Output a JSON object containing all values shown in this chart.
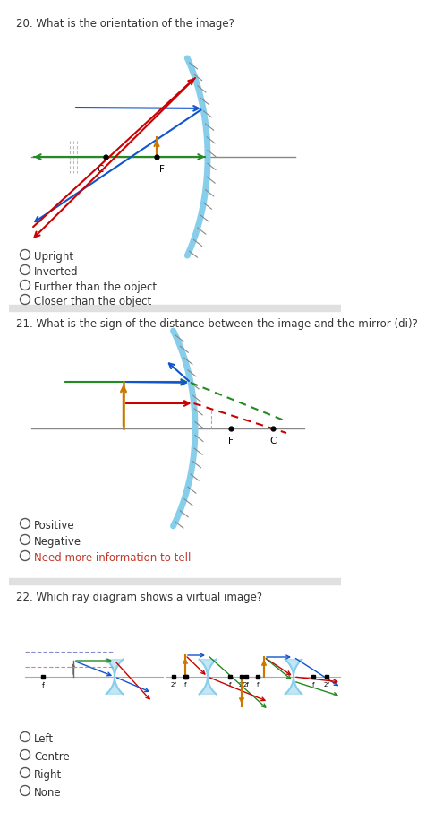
{
  "bg_color": "#ffffff",
  "separator_color": "#e0e0e0",
  "q20_title": "20. What is the orientation of the image?",
  "q20_options": [
    "Upright",
    "Inverted",
    "Further than the object",
    "Closer than the object"
  ],
  "q21_title": "21. What is the sign of the distance between the image and the mirror (di)?",
  "q21_options": [
    "Positive",
    "Negative",
    "Need more information to tell"
  ],
  "q22_title": "22. Which ray diagram shows a virtual image?",
  "q22_options": [
    "Left",
    "Centre",
    "Right",
    "None"
  ],
  "mirror_color": "#87CEEB",
  "hatch_color": "#888888",
  "axis_color": "#888888",
  "red": "#CC0000",
  "blue": "#1155CC",
  "green": "#228B22",
  "orange": "#CC7700"
}
